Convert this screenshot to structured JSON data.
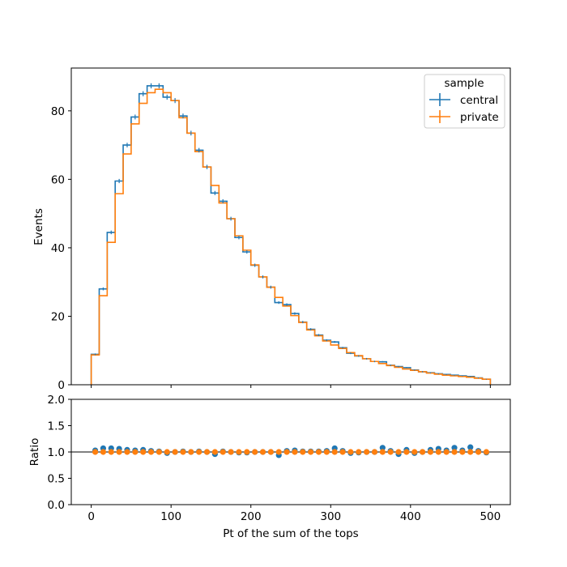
{
  "chart_data": [
    {
      "type": "step",
      "xlabel": "",
      "ylabel": "Events",
      "xlim": [
        -25,
        525
      ],
      "ylim": [
        0,
        92.5
      ],
      "yticks": [
        0,
        20,
        40,
        60,
        80
      ],
      "bin_edges": [
        0,
        10,
        20,
        30,
        40,
        50,
        60,
        70,
        80,
        90,
        100,
        110,
        120,
        130,
        140,
        150,
        160,
        170,
        180,
        190,
        200,
        210,
        220,
        230,
        240,
        250,
        260,
        270,
        280,
        290,
        300,
        310,
        320,
        330,
        340,
        350,
        360,
        370,
        380,
        390,
        400,
        410,
        420,
        430,
        440,
        450,
        460,
        470,
        480,
        490,
        500
      ],
      "legend_title": "sample",
      "legend_position": "top-right",
      "series": [
        {
          "name": "central",
          "color": "#1f77b4",
          "values": [
            8.9,
            28.0,
            44.5,
            59.5,
            70.0,
            78.2,
            85.0,
            87.3,
            87.3,
            84.0,
            83.0,
            78.5,
            73.5,
            68.5,
            63.6,
            56.0,
            53.6,
            48.5,
            43.0,
            38.8,
            34.9,
            31.5,
            28.5,
            24.0,
            23.4,
            20.8,
            18.3,
            16.2,
            14.5,
            13.0,
            12.5,
            10.8,
            9.2,
            8.4,
            7.6,
            6.8,
            6.7,
            5.7,
            5.3,
            5.0,
            4.3,
            3.8,
            3.5,
            3.2,
            3.0,
            2.8,
            2.6,
            2.4,
            2.0,
            1.6
          ]
        },
        {
          "name": "private",
          "color": "#ff7f0e",
          "values": [
            8.7,
            26.0,
            41.6,
            55.8,
            67.4,
            76.2,
            82.2,
            85.3,
            86.3,
            85.3,
            83.0,
            78.0,
            73.5,
            68.1,
            63.6,
            58.2,
            53.1,
            48.5,
            43.5,
            39.3,
            35.0,
            31.5,
            28.5,
            25.5,
            23.0,
            20.2,
            18.2,
            16.0,
            14.3,
            12.8,
            11.6,
            10.6,
            9.4,
            8.5,
            7.6,
            6.8,
            6.2,
            5.6,
            5.1,
            4.6,
            4.2,
            3.8,
            3.4,
            3.1,
            2.8,
            2.6,
            2.4,
            2.2,
            1.9,
            1.6
          ]
        }
      ]
    },
    {
      "type": "scatter",
      "xlabel": "Pt of the sum of the tops",
      "ylabel": "Ratio",
      "xlim": [
        -25,
        525
      ],
      "ylim": [
        0,
        2
      ],
      "yticks": [
        "0.0",
        "0.5",
        "1.0",
        "1.5",
        "2.0"
      ],
      "xticks": [
        "0",
        "100",
        "200",
        "300",
        "400",
        "500"
      ],
      "reference_line": 1.0,
      "x": [
        5,
        15,
        25,
        35,
        45,
        55,
        65,
        75,
        85,
        95,
        105,
        115,
        125,
        135,
        145,
        155,
        165,
        175,
        185,
        195,
        205,
        215,
        225,
        235,
        245,
        255,
        265,
        275,
        285,
        295,
        305,
        315,
        325,
        335,
        345,
        355,
        365,
        375,
        385,
        395,
        405,
        415,
        425,
        435,
        445,
        455,
        465,
        475,
        485,
        495
      ],
      "series": [
        {
          "name": "central",
          "color": "#1f77b4",
          "values": [
            1.03,
            1.07,
            1.07,
            1.06,
            1.04,
            1.03,
            1.04,
            1.02,
            1.01,
            0.98,
            1.0,
            1.01,
            1.0,
            1.01,
            1.0,
            0.96,
            1.01,
            1.0,
            0.99,
            0.99,
            1.0,
            1.0,
            1.0,
            0.94,
            1.02,
            1.03,
            1.01,
            1.01,
            1.01,
            1.02,
            1.07,
            1.02,
            0.98,
            0.99,
            1.0,
            1.0,
            1.08,
            1.02,
            0.96,
            1.04,
            0.98,
            1.0,
            1.04,
            1.06,
            1.03,
            1.08,
            1.03,
            1.09,
            1.02,
            0.99
          ]
        },
        {
          "name": "private",
          "color": "#ff7f0e",
          "values": [
            1,
            1,
            1,
            1,
            1,
            1,
            1,
            1,
            1,
            1,
            1,
            1,
            1,
            1,
            1,
            1,
            1,
            1,
            1,
            1,
            1,
            1,
            1,
            1,
            1,
            1,
            1,
            1,
            1,
            1,
            1,
            1,
            1,
            1,
            1,
            1,
            1,
            1,
            1,
            1,
            1,
            1,
            1,
            1,
            1,
            1,
            1,
            1,
            1,
            1
          ]
        }
      ]
    }
  ]
}
